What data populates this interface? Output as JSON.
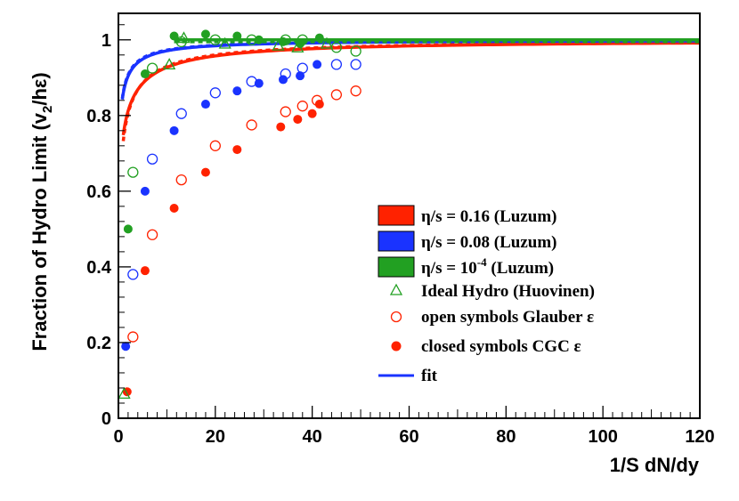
{
  "chart_data": {
    "type": "scatter",
    "title": "",
    "xlabel": "1/S dN/dy",
    "ylabel": {
      "pre": "Fraction of Hydro Limit (v",
      "sub": "2",
      "post": "/hε)"
    },
    "xlim": [
      0,
      120
    ],
    "ylim": [
      0,
      1.07
    ],
    "xticks": [
      0,
      20,
      40,
      60,
      80,
      100,
      120
    ],
    "xtick_labels": [
      "0",
      "20",
      "40",
      "60",
      "80",
      "100",
      "120"
    ],
    "yticks": [
      0,
      0.2,
      0.4,
      0.6,
      0.8,
      1.0
    ],
    "ytick_labels": [
      "0",
      "0.2",
      "0.4",
      "0.6",
      "0.8",
      "1"
    ],
    "grid": false,
    "legend_position": "right",
    "legend": [
      {
        "kind": "band",
        "color": "#ff2200",
        "label": "η/s = 0.16 (Luzum)"
      },
      {
        "kind": "band",
        "color": "#1a33ff",
        "label": "η/s = 0.08 (Luzum)"
      },
      {
        "kind": "band",
        "color": "#22a022",
        "label": "η/s = 10",
        "sup": "-4",
        "suffix": " (Luzum)"
      },
      {
        "kind": "triangle",
        "color": "#22a022",
        "label": "Ideal Hydro (Huovinen)"
      },
      {
        "kind": "open-circle",
        "color": "#ff2200",
        "label": "open symbols Glauber ε"
      },
      {
        "kind": "closed-circle",
        "color": "#ff2200",
        "label": "closed symbols CGC ε"
      },
      {
        "kind": "line",
        "color": "#1a33ff",
        "label": "fit"
      }
    ],
    "series": [
      {
        "name": "η/s = 0.16 CGC (closed)",
        "color": "#ff2200",
        "marker": "closed-circle",
        "x": [
          1.8,
          5.5,
          11.5,
          18,
          24.5,
          33.5,
          37,
          40,
          41.5
        ],
        "y": [
          0.07,
          0.39,
          0.555,
          0.65,
          0.71,
          0.77,
          0.79,
          0.805,
          0.83
        ]
      },
      {
        "name": "η/s = 0.16 Glauber (open)",
        "color": "#ff2200",
        "marker": "open-circle",
        "x": [
          3,
          7,
          13,
          20,
          27.5,
          34.5,
          38,
          41,
          45,
          49
        ],
        "y": [
          0.215,
          0.485,
          0.63,
          0.72,
          0.775,
          0.81,
          0.825,
          0.84,
          0.855,
          0.865
        ]
      },
      {
        "name": "η/s = 0.08 CGC (closed)",
        "color": "#1a33ff",
        "marker": "closed-circle",
        "x": [
          1.5,
          5.5,
          11.5,
          18,
          24.5,
          29,
          34,
          37.5,
          41
        ],
        "y": [
          0.19,
          0.6,
          0.76,
          0.83,
          0.865,
          0.885,
          0.895,
          0.905,
          0.935
        ]
      },
      {
        "name": "η/s = 0.08 Glauber (open)",
        "color": "#1a33ff",
        "marker": "open-circle",
        "x": [
          3,
          7,
          13,
          20,
          27.5,
          34.5,
          38,
          45,
          49
        ],
        "y": [
          0.38,
          0.685,
          0.805,
          0.86,
          0.89,
          0.91,
          0.925,
          0.935,
          0.935
        ]
      },
      {
        "name": "η/s = 10^-4 CGC (closed)",
        "color": "#22a022",
        "marker": "closed-circle",
        "x": [
          2,
          5.5,
          11.5,
          18,
          24.5,
          29,
          34,
          37.5,
          41.5
        ],
        "y": [
          0.5,
          0.91,
          1.01,
          1.015,
          1.01,
          1.0,
          0.995,
          0.99,
          1.005
        ]
      },
      {
        "name": "η/s = 10^-4 Glauber (open)",
        "color": "#22a022",
        "marker": "open-circle",
        "x": [
          3,
          7,
          13,
          20,
          27.5,
          34.5,
          38,
          45,
          49
        ],
        "y": [
          0.65,
          0.925,
          0.995,
          1.0,
          1.0,
          1.0,
          1.0,
          0.98,
          0.97
        ]
      },
      {
        "name": "Ideal Hydro (Huovinen)",
        "color": "#22a022",
        "marker": "triangle",
        "x": [
          1.2,
          10.5,
          13.5,
          22,
          33,
          37,
          43
        ],
        "y": [
          0.065,
          0.935,
          1.005,
          0.99,
          0.985,
          0.98,
          0.99
        ]
      }
    ],
    "fits": [
      {
        "name": "η/s = 0.16 fit solid",
        "color": "#ff2200",
        "style": "solid",
        "A": 1.0,
        "B": 0.105,
        "C": 10.0,
        "x_range": [
          1,
          120
        ]
      },
      {
        "name": "η/s = 0.16 fit dotted",
        "color": "#ff2200",
        "style": "dotted",
        "A": 1.0,
        "B": 0.125,
        "C": 7.5,
        "x_range": [
          1,
          120
        ]
      },
      {
        "name": "η/s = 0.08 fit solid",
        "color": "#1a33ff",
        "style": "solid",
        "A": 1.0,
        "B": 0.09,
        "C": 3.8,
        "x_range": [
          0.8,
          120
        ]
      },
      {
        "name": "η/s = 0.08 fit dotted",
        "color": "#1a33ff",
        "style": "dotted",
        "A": 1.0,
        "B": 0.095,
        "C": 3.3,
        "x_range": [
          0.8,
          120
        ]
      },
      {
        "name": "η/s = 10^-4 fit solid",
        "color": "#22a022",
        "style": "solid",
        "A": 1.0,
        "B": 0.0,
        "C": 0.05,
        "x_range": [
          11.5,
          120
        ]
      },
      {
        "name": "η/s = 10^-4 fit dotted",
        "color": "#22a022",
        "style": "dotted",
        "A": 0.995,
        "B": 0.0,
        "C": 0.8,
        "x_range": [
          11.5,
          120
        ]
      }
    ]
  }
}
